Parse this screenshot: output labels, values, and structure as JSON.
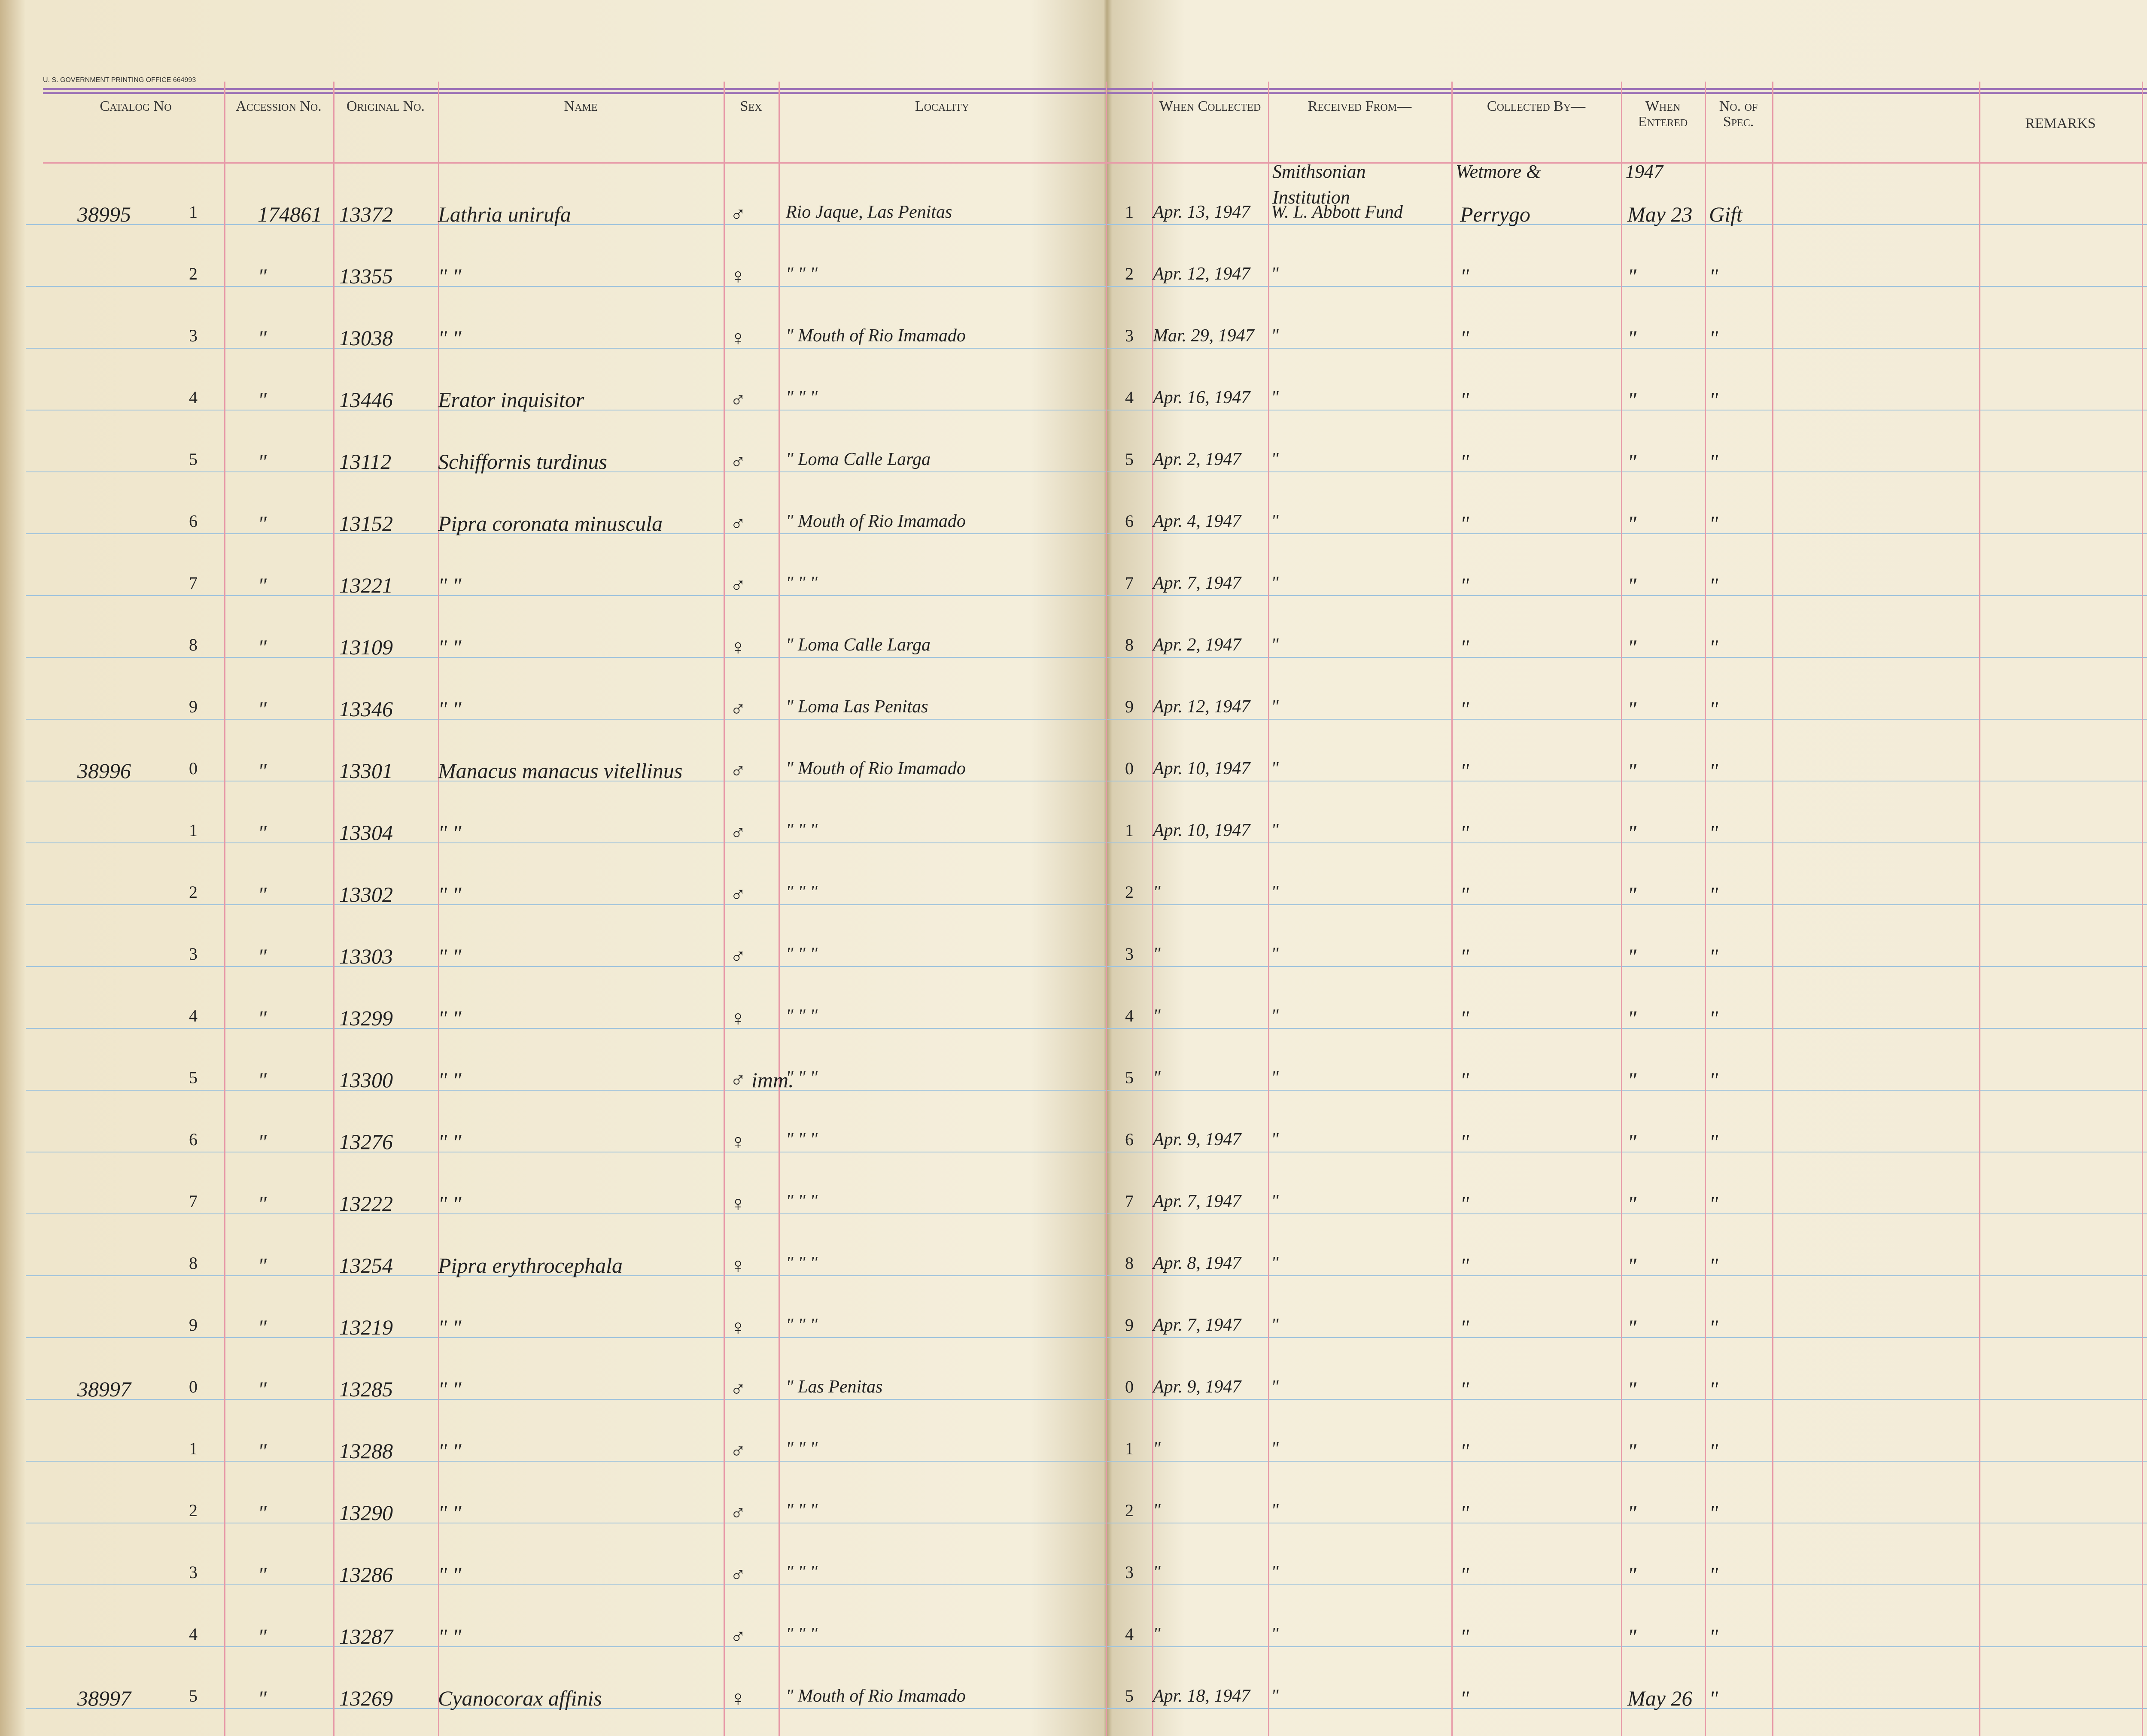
{
  "printer_line": "U. S. GOVERNMENT PRINTING OFFICE   664993",
  "headers": {
    "catalog": "Catalog No",
    "accession": "Accession No.",
    "original": "Original No.",
    "name": "Name",
    "sex": "Sex",
    "locality": "Locality",
    "collected": "When Collected",
    "received": "Received From—",
    "collected_by": "Collected By—",
    "entered": "When Entered",
    "spec": "No. of Spec.",
    "remarks": "REMARKS"
  },
  "top_notes": {
    "received": "Smithsonian Institution",
    "collected_by": "Wetmore &",
    "entered": "1947"
  },
  "rows": [
    {
      "catalog": "38995",
      "digit": "1",
      "accession": "174861",
      "original": "13372",
      "name": "Lathria unirufa",
      "sex": "♂",
      "locality": "Rio Jaque, Las Penitas",
      "digit_r": "1",
      "collected": "Apr. 13, 1947",
      "received": "W. L. Abbott Fund",
      "collected_by": "Perrygo",
      "entered": "May 23",
      "spec": "Gift"
    },
    {
      "digit": "2",
      "accession": "\"",
      "original": "13355",
      "name": "\"      \"",
      "sex": "♀",
      "locality": "\"     \"     \"",
      "digit_r": "2",
      "collected": "Apr. 12, 1947",
      "received": "\"",
      "collected_by": "\"",
      "entered": "\"",
      "spec": "\""
    },
    {
      "digit": "3",
      "accession": "\"",
      "original": "13038",
      "name": "\"      \"",
      "sex": "♀",
      "locality": "\" Mouth of Rio Imamado",
      "digit_r": "3",
      "collected": "Mar. 29, 1947",
      "received": "\"",
      "collected_by": "\"",
      "entered": "\"",
      "spec": "\""
    },
    {
      "digit": "4",
      "accession": "\"",
      "original": "13446",
      "name": "Erator inquisitor",
      "sex": "♂",
      "locality": "\"     \"     \"",
      "digit_r": "4",
      "collected": "Apr. 16, 1947",
      "received": "\"",
      "collected_by": "\"",
      "entered": "\"",
      "spec": "\""
    },
    {
      "digit": "5",
      "accession": "\"",
      "original": "13112",
      "name": "Schiffornis turdinus",
      "sex": "♂",
      "locality": "\" Loma Calle Larga",
      "digit_r": "5",
      "collected": "Apr. 2, 1947",
      "received": "\"",
      "collected_by": "\"",
      "entered": "\"",
      "spec": "\""
    },
    {
      "digit": "6",
      "accession": "\"",
      "original": "13152",
      "name": "Pipra coronata minuscula",
      "sex": "♂",
      "locality": "\" Mouth of Rio Imamado",
      "digit_r": "6",
      "collected": "Apr. 4, 1947",
      "received": "\"",
      "collected_by": "\"",
      "entered": "\"",
      "spec": "\""
    },
    {
      "digit": "7",
      "accession": "\"",
      "original": "13221",
      "name": "\"      \"",
      "sex": "♂",
      "locality": "\"     \"     \"",
      "digit_r": "7",
      "collected": "Apr. 7, 1947",
      "received": "\"",
      "collected_by": "\"",
      "entered": "\"",
      "spec": "\""
    },
    {
      "digit": "8",
      "accession": "\"",
      "original": "13109",
      "name": "\"      \"",
      "sex": "♀",
      "locality": "\" Loma Calle Larga",
      "digit_r": "8",
      "collected": "Apr. 2, 1947",
      "received": "\"",
      "collected_by": "\"",
      "entered": "\"",
      "spec": "\""
    },
    {
      "digit": "9",
      "accession": "\"",
      "original": "13346",
      "name": "\"      \"",
      "sex": "♂",
      "locality": "\" Loma Las Penitas",
      "digit_r": "9",
      "collected": "Apr. 12, 1947",
      "received": "\"",
      "collected_by": "\"",
      "entered": "\"",
      "spec": "\""
    },
    {
      "catalog": "38996",
      "digit": "0",
      "accession": "\"",
      "original": "13301",
      "name": "Manacus manacus vitellinus",
      "sex": "♂",
      "locality": "\" Mouth of Rio Imamado",
      "digit_r": "0",
      "collected": "Apr. 10, 1947",
      "received": "\"",
      "collected_by": "\"",
      "entered": "\"",
      "spec": "\""
    },
    {
      "digit": "1",
      "accession": "\"",
      "original": "13304",
      "name": "\"      \"",
      "sex": "♂",
      "locality": "\"     \"     \"",
      "digit_r": "1",
      "collected": "Apr. 10, 1947",
      "received": "\"",
      "collected_by": "\"",
      "entered": "\"",
      "spec": "\""
    },
    {
      "digit": "2",
      "accession": "\"",
      "original": "13302",
      "name": "\"      \"",
      "sex": "♂",
      "locality": "\"     \"     \"",
      "digit_r": "2",
      "collected": "\"",
      "received": "\"",
      "collected_by": "\"",
      "entered": "\"",
      "spec": "\""
    },
    {
      "digit": "3",
      "accession": "\"",
      "original": "13303",
      "name": "\"      \"",
      "sex": "♂",
      "locality": "\"     \"     \"",
      "digit_r": "3",
      "collected": "\"",
      "received": "\"",
      "collected_by": "\"",
      "entered": "\"",
      "spec": "\""
    },
    {
      "digit": "4",
      "accession": "\"",
      "original": "13299",
      "name": "\"      \"",
      "sex": "♀",
      "locality": "\"     \"     \"",
      "digit_r": "4",
      "collected": "\"",
      "received": "\"",
      "collected_by": "\"",
      "entered": "\"",
      "spec": "\""
    },
    {
      "digit": "5",
      "accession": "\"",
      "original": "13300",
      "name": "\"      \"",
      "sex": "♂ imm.",
      "locality": "\"     \"     \"",
      "digit_r": "5",
      "collected": "\"",
      "received": "\"",
      "collected_by": "\"",
      "entered": "\"",
      "spec": "\""
    },
    {
      "digit": "6",
      "accession": "\"",
      "original": "13276",
      "name": "\"      \"",
      "sex": "♀",
      "locality": "\"     \"     \"",
      "digit_r": "6",
      "collected": "Apr. 9, 1947",
      "received": "\"",
      "collected_by": "\"",
      "entered": "\"",
      "spec": "\""
    },
    {
      "digit": "7",
      "accession": "\"",
      "original": "13222",
      "name": "\"      \"",
      "sex": "♀",
      "locality": "\"     \"     \"",
      "digit_r": "7",
      "collected": "Apr. 7, 1947",
      "received": "\"",
      "collected_by": "\"",
      "entered": "\"",
      "spec": "\""
    },
    {
      "digit": "8",
      "accession": "\"",
      "original": "13254",
      "name": "Pipra erythrocephala",
      "sex": "♀",
      "locality": "\"     \"     \"",
      "digit_r": "8",
      "collected": "Apr. 8, 1947",
      "received": "\"",
      "collected_by": "\"",
      "entered": "\"",
      "spec": "\""
    },
    {
      "digit": "9",
      "accession": "\"",
      "original": "13219",
      "name": "\"      \"",
      "sex": "♀",
      "locality": "\"     \"     \"",
      "digit_r": "9",
      "collected": "Apr. 7, 1947",
      "received": "\"",
      "collected_by": "\"",
      "entered": "\"",
      "spec": "\""
    },
    {
      "catalog": "38997",
      "digit": "0",
      "accession": "\"",
      "original": "13285",
      "name": "\"      \"",
      "sex": "♂",
      "locality": "\" Las Penitas",
      "digit_r": "0",
      "collected": "Apr. 9, 1947",
      "received": "\"",
      "collected_by": "\"",
      "entered": "\"",
      "spec": "\""
    },
    {
      "digit": "1",
      "accession": "\"",
      "original": "13288",
      "name": "\"      \"",
      "sex": "♂",
      "locality": "\"     \"     \"",
      "digit_r": "1",
      "collected": "\"",
      "received": "\"",
      "collected_by": "\"",
      "entered": "\"",
      "spec": "\""
    },
    {
      "digit": "2",
      "accession": "\"",
      "original": "13290",
      "name": "\"      \"",
      "sex": "♂",
      "locality": "\"     \"     \"",
      "digit_r": "2",
      "collected": "\"",
      "received": "\"",
      "collected_by": "\"",
      "entered": "\"",
      "spec": "\""
    },
    {
      "digit": "3",
      "accession": "\"",
      "original": "13286",
      "name": "\"      \"",
      "sex": "♂",
      "locality": "\"     \"     \"",
      "digit_r": "3",
      "collected": "\"",
      "received": "\"",
      "collected_by": "\"",
      "entered": "\"",
      "spec": "\""
    },
    {
      "digit": "4",
      "accession": "\"",
      "original": "13287",
      "name": "\"      \"",
      "sex": "♂",
      "locality": "\"     \"     \"",
      "digit_r": "4",
      "collected": "\"",
      "received": "\"",
      "collected_by": "\"",
      "entered": "\"",
      "spec": "\""
    },
    {
      "catalog": "38997",
      "digit": "5",
      "accession": "\"",
      "original": "13269",
      "name": "Cyanocorax affinis",
      "sex": "♀",
      "locality": "\" Mouth of Rio Imamado",
      "digit_r": "5",
      "collected": "Apr. 18, 1947",
      "received": "\"",
      "collected_by": "\"",
      "entered": "May 26",
      "spec": "\""
    }
  ]
}
